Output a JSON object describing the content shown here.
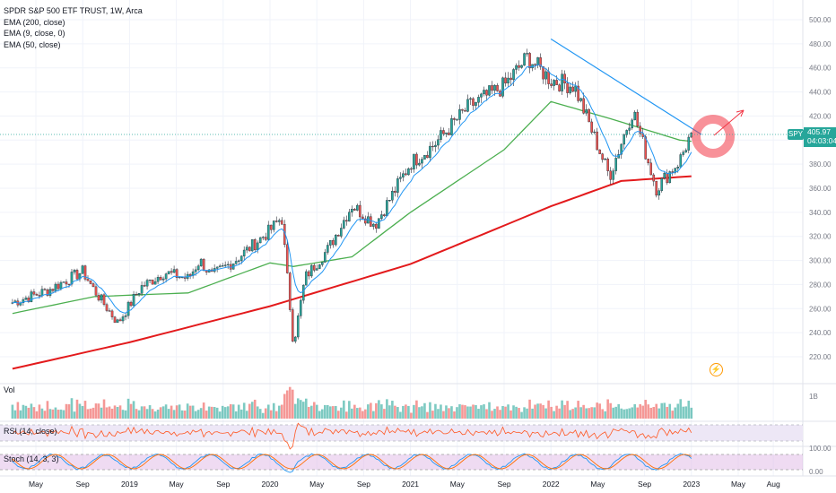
{
  "legend": {
    "title": "SPDR S&P 500 ETF TRUST, 1W, Arca",
    "ema200": "EMA (200, close)",
    "ema9": "EMA (9, close, 0)",
    "ema50": "EMA (50, close)"
  },
  "price_axis": [
    "500.00",
    "480.00",
    "460.00",
    "440.00",
    "420.00",
    "400.00",
    "380.00",
    "360.00",
    "340.00",
    "320.00",
    "300.00",
    "280.00",
    "260.00",
    "240.00",
    "220.00"
  ],
  "price_tag": {
    "symbol": "SPY",
    "price": "405.97",
    "countdown": "04:03:04"
  },
  "volume": {
    "label": "Vol",
    "axis_label": "1B"
  },
  "rsi": {
    "label": "RSI (14, close)",
    "axis_label": "100.00"
  },
  "stoch": {
    "label": "Stoch (14, 3, 3)",
    "axis_label": "0.00"
  },
  "x_axis": [
    "May",
    "Sep",
    "2019",
    "May",
    "Sep",
    "2020",
    "May",
    "Sep",
    "2021",
    "May",
    "Sep",
    "2022",
    "May",
    "Sep",
    "2023",
    "May",
    "Aug"
  ],
  "colors": {
    "up": "#26a69a",
    "down": "#ef5350",
    "ema9": "#2196f3",
    "ema50": "#4caf50",
    "ema200": "#e31a1c",
    "trendline": "#2196f3",
    "circle": "#f23645",
    "rsi": "#ff5722",
    "rsi_band": "#ede7f6",
    "stoch_k": "#2196f3",
    "stoch_d": "#ff6d00"
  },
  "icons": {
    "replay": "lightning-icon"
  },
  "chart_data": {
    "type": "candlestick",
    "symbol": "SPY",
    "interval": "1W",
    "exchange": "Arca",
    "x_range": [
      "2018-03",
      "2023-08"
    ],
    "ylim": [
      200,
      500
    ],
    "last_price": 405.97,
    "close_path": [
      [
        "2018-03",
        265
      ],
      [
        "2018-06",
        275
      ],
      [
        "2018-09",
        291
      ],
      [
        "2018-10",
        275
      ],
      [
        "2018-12",
        248
      ],
      [
        "2019-02",
        278
      ],
      [
        "2019-04",
        290
      ],
      [
        "2019-06",
        285
      ],
      [
        "2019-07",
        300
      ],
      [
        "2019-08",
        287
      ],
      [
        "2019-10",
        300
      ],
      [
        "2020-01",
        325
      ],
      [
        "2020-02",
        336
      ],
      [
        "2020-03",
        230
      ],
      [
        "2020-04",
        286
      ],
      [
        "2020-06",
        310
      ],
      [
        "2020-08",
        346
      ],
      [
        "2020-10",
        330
      ],
      [
        "2021-01",
        381
      ],
      [
        "2021-03",
        396
      ],
      [
        "2021-06",
        428
      ],
      [
        "2021-09",
        445
      ],
      [
        "2021-11",
        469
      ],
      [
        "2022-01",
        450
      ],
      [
        "2022-03",
        445
      ],
      [
        "2022-05",
        395
      ],
      [
        "2022-06",
        370
      ],
      [
        "2022-08",
        425
      ],
      [
        "2022-10",
        360
      ],
      [
        "2022-12",
        383
      ],
      [
        "2023-01",
        405.97
      ]
    ],
    "series": [
      {
        "name": "EMA (200, close)",
        "values": [
          [
            "2018-03",
            210
          ],
          [
            "2019-01",
            232
          ],
          [
            "2020-01",
            262
          ],
          [
            "2021-01",
            297
          ],
          [
            "2022-01",
            345
          ],
          [
            "2022-07",
            366
          ],
          [
            "2023-01",
            370
          ]
        ]
      },
      {
        "name": "EMA (50, close)",
        "values": [
          [
            "2018-03",
            256
          ],
          [
            "2018-10",
            270
          ],
          [
            "2019-06",
            273
          ],
          [
            "2020-01",
            298
          ],
          [
            "2020-03",
            295
          ],
          [
            "2020-08",
            303
          ],
          [
            "2021-01",
            340
          ],
          [
            "2021-09",
            392
          ],
          [
            "2022-01",
            432
          ],
          [
            "2022-06",
            418
          ],
          [
            "2022-12",
            400
          ],
          [
            "2023-01",
            399
          ]
        ]
      }
    ],
    "trendline": [
      [
        "2022-01",
        484
      ],
      [
        "2022-12",
        404
      ]
    ],
    "annotation_arrow": [
      [
        "2023-01",
        405
      ],
      [
        "2023-04",
        426
      ]
    ]
  }
}
